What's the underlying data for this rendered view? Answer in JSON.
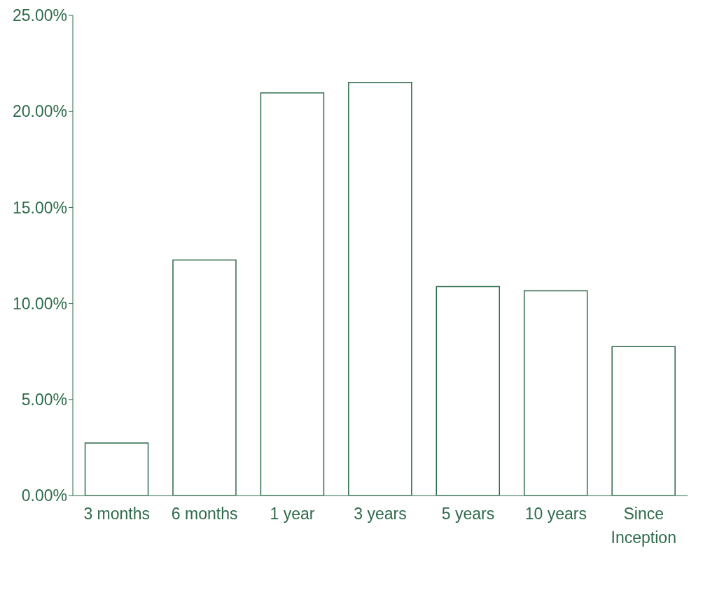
{
  "chart_data": {
    "type": "bar",
    "categories": [
      "3 months",
      "6 months",
      "1 year",
      "3 years",
      "5 years",
      "10 years",
      "Since Inception"
    ],
    "values": [
      2.73,
      12.26,
      20.96,
      21.51,
      10.88,
      10.66,
      7.75
    ],
    "color": "#2d6a4a",
    "ylim": [
      0,
      25
    ],
    "yticks": [
      {
        "value": 0,
        "label": "0.00%"
      },
      {
        "value": 5,
        "label": "5.00%"
      },
      {
        "value": 10,
        "label": "10.00%"
      },
      {
        "value": 15,
        "label": "15.00%"
      },
      {
        "value": 20,
        "label": "20.00%"
      },
      {
        "value": 25,
        "label": "25.00%"
      }
    ],
    "grid": false,
    "legend": false
  }
}
